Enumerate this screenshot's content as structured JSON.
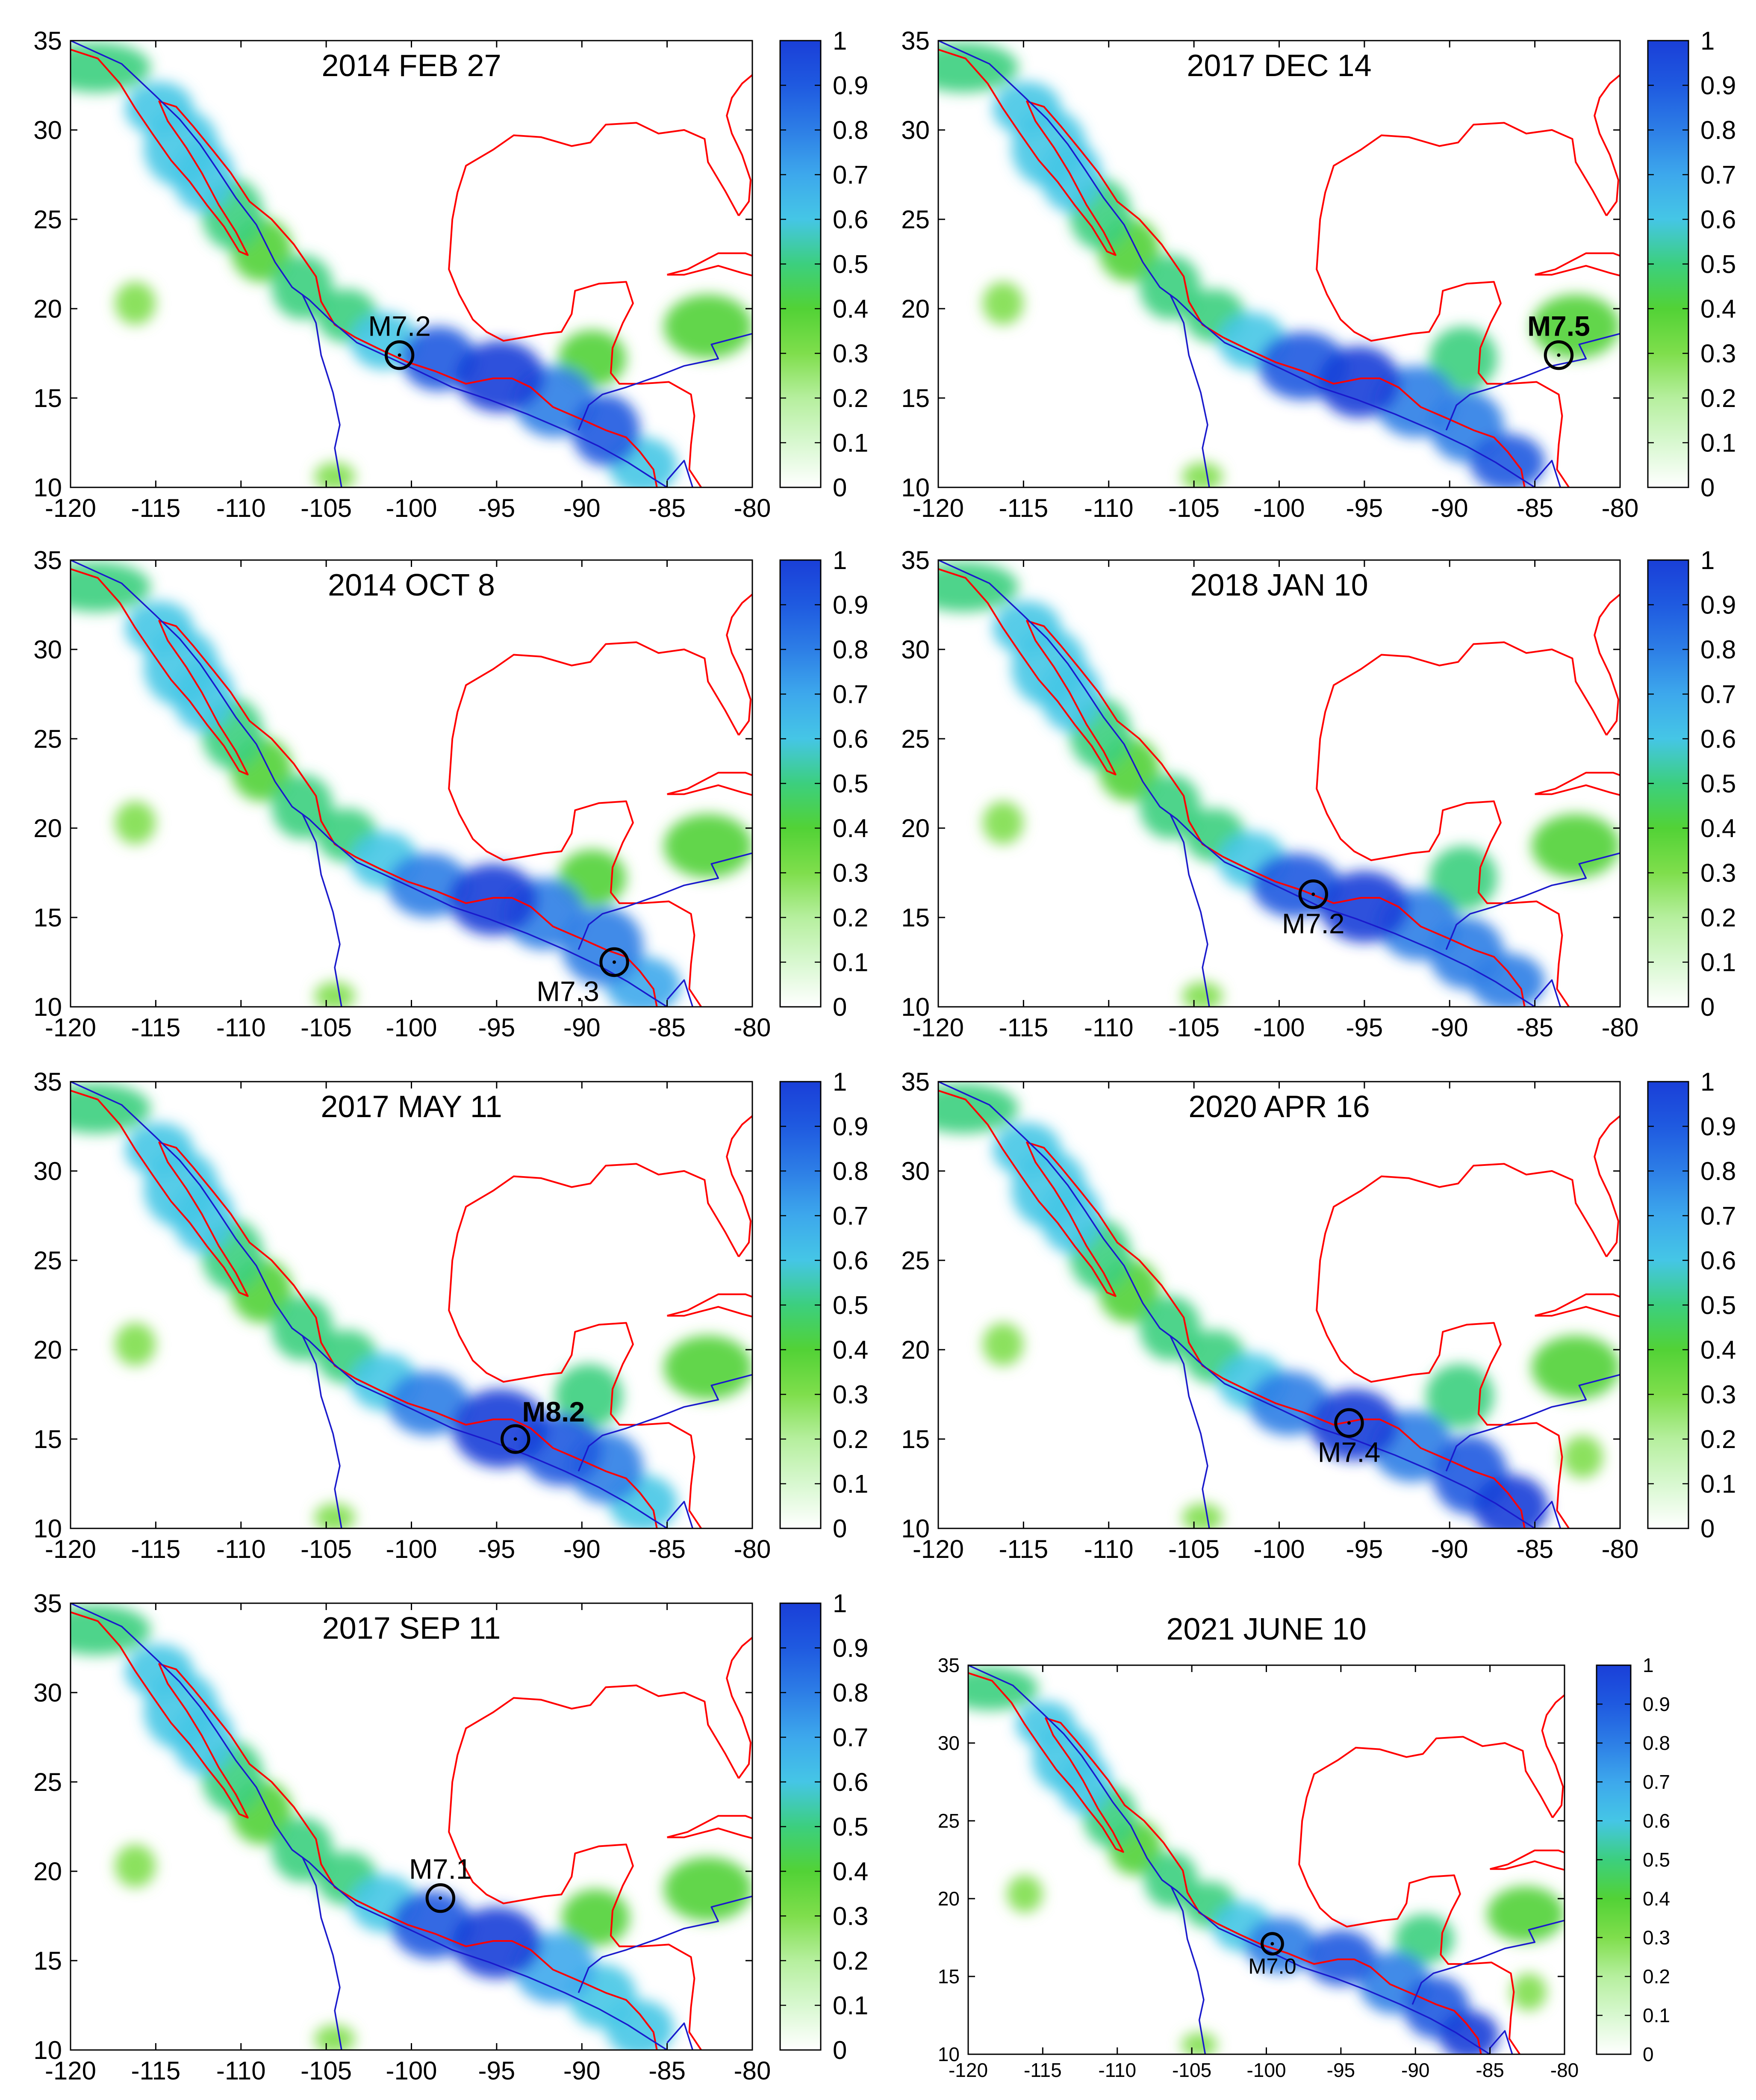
{
  "colors": {
    "coast": "#ff0000",
    "plate": "#1a1acc",
    "frame": "#000000",
    "colormap": [
      "#ffffff",
      "#d8f8d0",
      "#b6ef9e",
      "#7fde4c",
      "#52d236",
      "#3ccf7e",
      "#45c6e6",
      "#3da8ec",
      "#2d7ee6",
      "#1f5ae0",
      "#1a3fd8"
    ]
  },
  "chart_data": [
    {
      "type": "heatmap",
      "title": "2014 FEB 27",
      "event": {
        "label": "M7.2",
        "lon": -100.7,
        "lat": 17.4,
        "bold": false,
        "label_side": "above"
      },
      "xlim": [
        -120,
        -80
      ],
      "ylim": [
        10,
        35
      ],
      "xticks": [
        "-120",
        "-115",
        "-110",
        "-105",
        "-100",
        "-95",
        "-90",
        "-85",
        "-80"
      ],
      "yticks": [
        "10",
        "15",
        "20",
        "25",
        "30",
        "35"
      ],
      "colorbar_ticks": [
        "0",
        "0.1",
        "0.2",
        "0.3",
        "0.4",
        "0.5",
        "0.6",
        "0.7",
        "0.8",
        "0.9",
        "1"
      ],
      "colorbar_range": [
        0,
        1
      ]
    },
    {
      "type": "heatmap",
      "title": "2017 DEC 14",
      "event": {
        "label": "M7.5",
        "lon": -83.6,
        "lat": 17.4,
        "bold": true,
        "label_side": "above"
      },
      "xlim": [
        -120,
        -80
      ],
      "ylim": [
        10,
        35
      ],
      "xticks": [
        "-120",
        "-115",
        "-110",
        "-105",
        "-100",
        "-95",
        "-90",
        "-85",
        "-80"
      ],
      "yticks": [
        "10",
        "15",
        "20",
        "25",
        "30",
        "35"
      ],
      "colorbar_ticks": [
        "0",
        "0.1",
        "0.2",
        "0.3",
        "0.4",
        "0.5",
        "0.6",
        "0.7",
        "0.8",
        "0.9",
        "1"
      ],
      "colorbar_range": [
        0,
        1
      ]
    },
    {
      "type": "heatmap",
      "title": "2014 OCT 8",
      "event": {
        "label": "M7.3",
        "lon": -88.1,
        "lat": 12.5,
        "bold": false,
        "label_side": "below-left"
      },
      "xlim": [
        -120,
        -80
      ],
      "ylim": [
        10,
        35
      ],
      "xticks": [
        "-120",
        "-115",
        "-110",
        "-105",
        "-100",
        "-95",
        "-90",
        "-85",
        "-80"
      ],
      "yticks": [
        "10",
        "15",
        "20",
        "25",
        "30",
        "35"
      ],
      "colorbar_ticks": [
        "0",
        "0.1",
        "0.2",
        "0.3",
        "0.4",
        "0.5",
        "0.6",
        "0.7",
        "0.8",
        "0.9",
        "1"
      ],
      "colorbar_range": [
        0,
        1
      ]
    },
    {
      "type": "heatmap",
      "title": "2018 JAN 10",
      "event": {
        "label": "M7.2",
        "lon": -98.0,
        "lat": 16.3,
        "bold": false,
        "label_side": "below"
      },
      "xlim": [
        -120,
        -80
      ],
      "ylim": [
        10,
        35
      ],
      "xticks": [
        "-120",
        "-115",
        "-110",
        "-105",
        "-100",
        "-95",
        "-90",
        "-85",
        "-80"
      ],
      "yticks": [
        "10",
        "15",
        "20",
        "25",
        "30",
        "35"
      ],
      "colorbar_ticks": [
        "0",
        "0.1",
        "0.2",
        "0.3",
        "0.4",
        "0.5",
        "0.6",
        "0.7",
        "0.8",
        "0.9",
        "1"
      ],
      "colorbar_range": [
        0,
        1
      ]
    },
    {
      "type": "heatmap",
      "title": "2017 MAY 11",
      "event": {
        "label": "M8.2",
        "lon": -93.9,
        "lat": 15.0,
        "bold": true,
        "label_side": "above-right"
      },
      "xlim": [
        -120,
        -80
      ],
      "ylim": [
        10,
        35
      ],
      "xticks": [
        "-120",
        "-115",
        "-110",
        "-105",
        "-100",
        "-95",
        "-90",
        "-85",
        "-80"
      ],
      "yticks": [
        "10",
        "15",
        "20",
        "25",
        "30",
        "35"
      ],
      "colorbar_ticks": [
        "0",
        "0.1",
        "0.2",
        "0.3",
        "0.4",
        "0.5",
        "0.6",
        "0.7",
        "0.8",
        "0.9",
        "1"
      ],
      "colorbar_range": [
        0,
        1
      ]
    },
    {
      "type": "heatmap",
      "title": "2020 APR 16",
      "event": {
        "label": "M7.4",
        "lon": -95.9,
        "lat": 15.9,
        "bold": false,
        "label_side": "below"
      },
      "xlim": [
        -120,
        -80
      ],
      "ylim": [
        10,
        35
      ],
      "xticks": [
        "-120",
        "-115",
        "-110",
        "-105",
        "-100",
        "-95",
        "-90",
        "-85",
        "-80"
      ],
      "yticks": [
        "10",
        "15",
        "20",
        "25",
        "30",
        "35"
      ],
      "colorbar_ticks": [
        "0",
        "0.1",
        "0.2",
        "0.3",
        "0.4",
        "0.5",
        "0.6",
        "0.7",
        "0.8",
        "0.9",
        "1"
      ],
      "colorbar_range": [
        0,
        1
      ]
    },
    {
      "type": "heatmap",
      "title": "2017 SEP 11",
      "event": {
        "label": "M7.1",
        "lon": -98.3,
        "lat": 18.5,
        "bold": false,
        "label_side": "above"
      },
      "xlim": [
        -120,
        -80
      ],
      "ylim": [
        10,
        35
      ],
      "xticks": [
        "-120",
        "-115",
        "-110",
        "-105",
        "-100",
        "-95",
        "-90",
        "-85",
        "-80"
      ],
      "yticks": [
        "10",
        "15",
        "20",
        "25",
        "30",
        "35"
      ],
      "colorbar_ticks": [
        "0",
        "0.1",
        "0.2",
        "0.3",
        "0.4",
        "0.5",
        "0.6",
        "0.7",
        "0.8",
        "0.9",
        "1"
      ],
      "colorbar_range": [
        0,
        1
      ]
    },
    {
      "type": "heatmap",
      "title": "2021 JUNE 10",
      "event": {
        "label": "M7.0",
        "lon": -99.6,
        "lat": 17.1,
        "bold": false,
        "label_side": "below"
      },
      "xlim": [
        -120,
        -80
      ],
      "ylim": [
        10,
        35
      ],
      "xticks": [
        "-120",
        "-115",
        "-110",
        "-105",
        "-100",
        "-95",
        "-90",
        "-85",
        "-80"
      ],
      "yticks": [
        "10",
        "15",
        "20",
        "25",
        "30",
        "35"
      ],
      "colorbar_ticks": [
        "0",
        "0.1",
        "0.2",
        "0.3",
        "0.4",
        "0.5",
        "0.6",
        "0.7",
        "0.8",
        "0.9",
        "1"
      ],
      "colorbar_range": [
        0,
        1
      ]
    }
  ]
}
